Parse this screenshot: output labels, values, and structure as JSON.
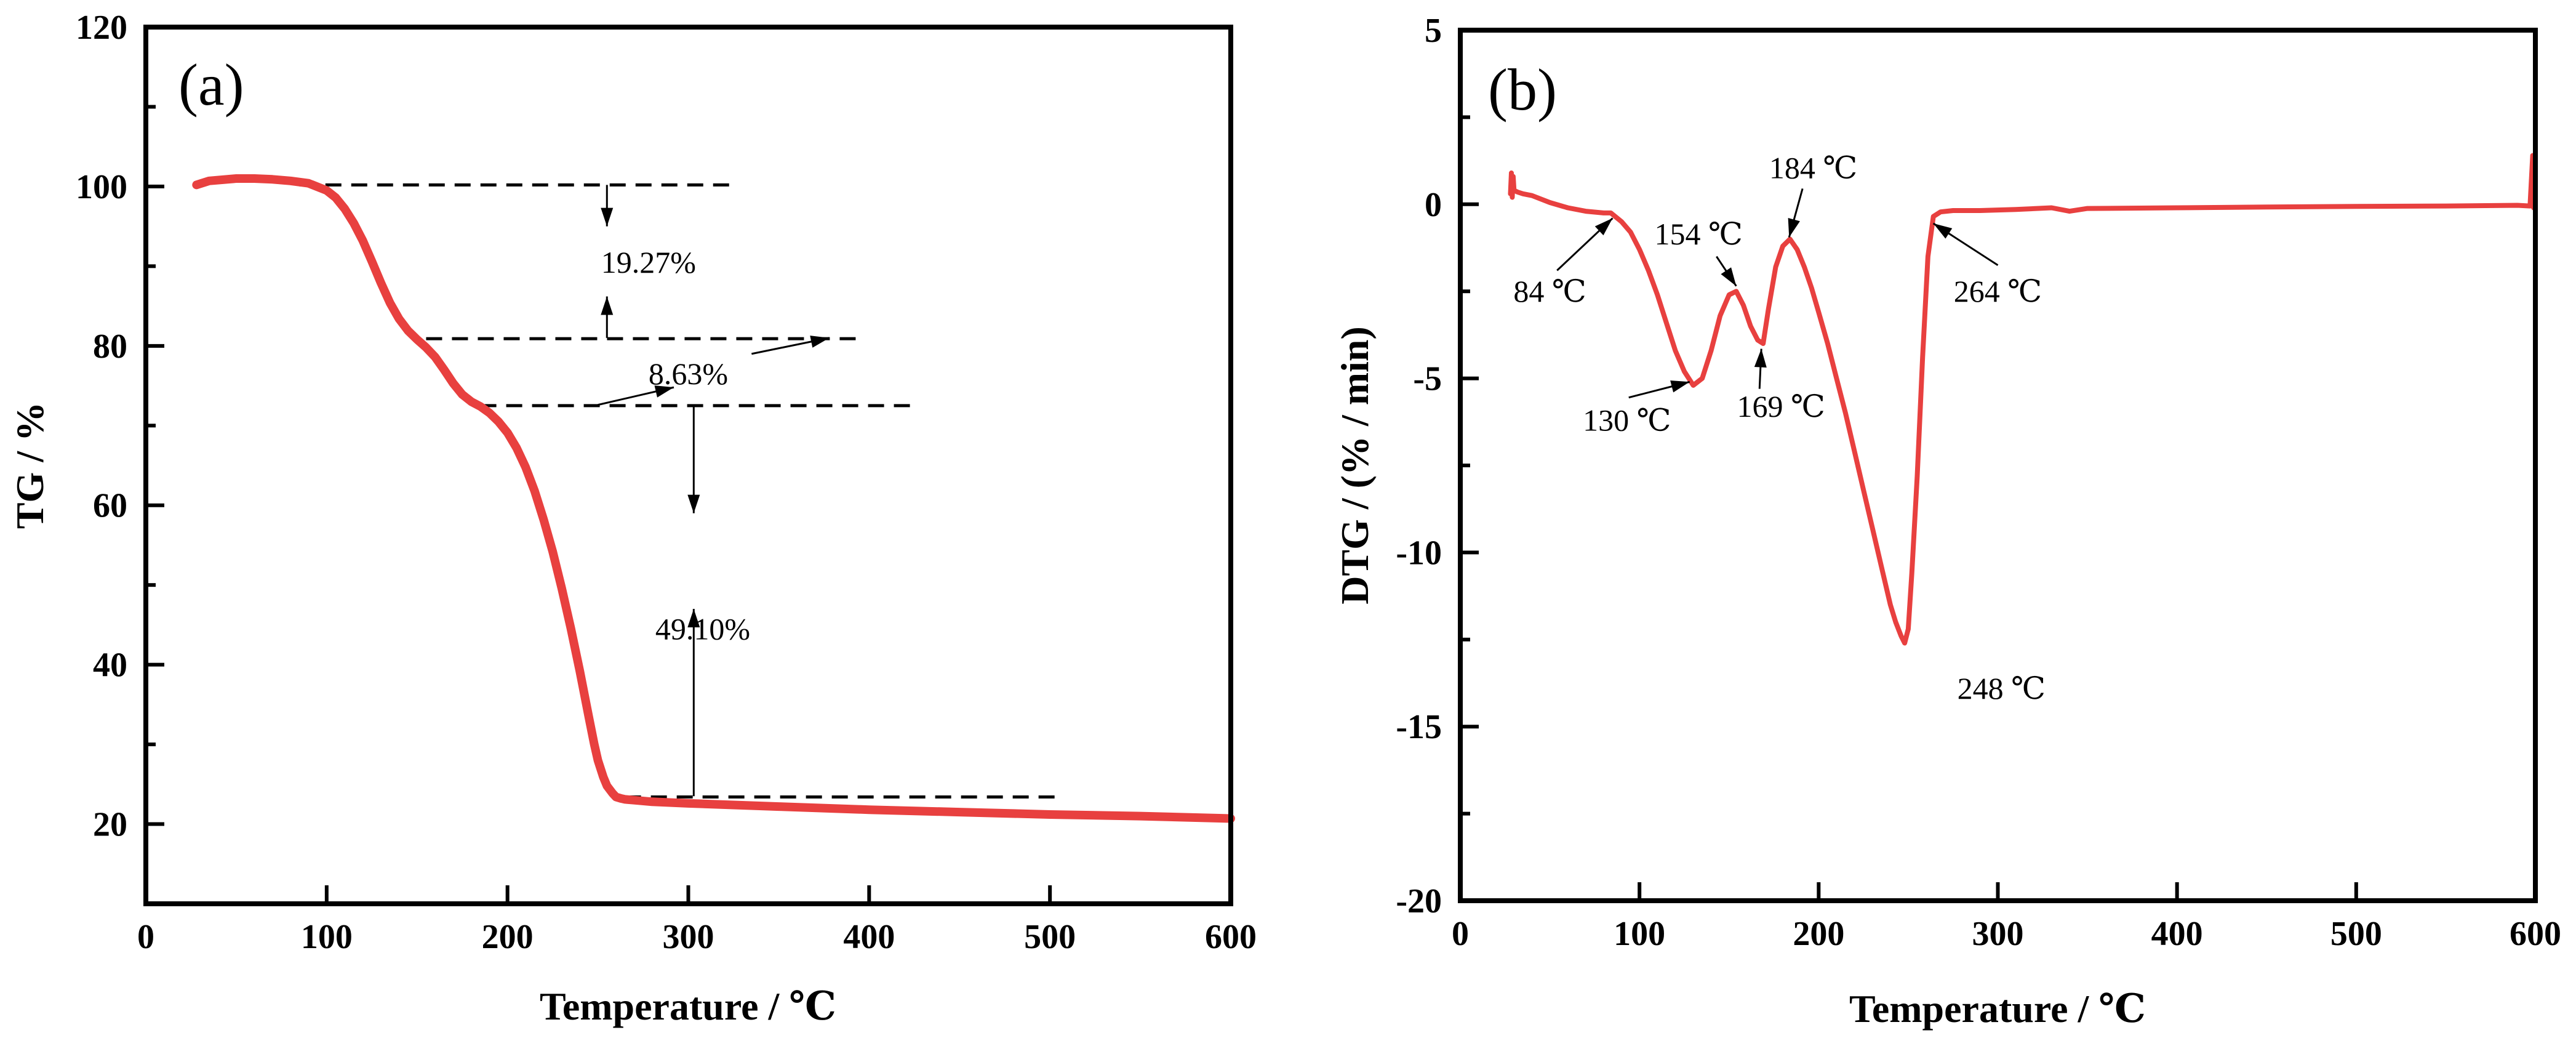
{
  "chart_data": [
    {
      "type": "line",
      "panel_label": "(a)",
      "xlabel": "Temperature / ℃",
      "ylabel": "TG / %",
      "xlim": [
        0,
        600
      ],
      "ylim": [
        10,
        120
      ],
      "xticks": [
        0,
        100,
        200,
        300,
        400,
        500,
        600
      ],
      "yticks": [
        20,
        40,
        60,
        80,
        100,
        120
      ],
      "minor_yticks": [
        30,
        50,
        70,
        90,
        110
      ],
      "line_color": "#e8403f",
      "series": [
        {
          "name": "TG",
          "x": [
            28,
            35,
            50,
            60,
            70,
            80,
            90,
            100,
            105,
            110,
            115,
            120,
            125,
            130,
            135,
            140,
            145,
            150,
            155,
            160,
            165,
            170,
            175,
            180,
            185,
            190,
            195,
            200,
            205,
            210,
            215,
            220,
            225,
            230,
            235,
            240,
            245,
            248,
            250,
            253,
            255,
            258,
            260,
            263,
            265,
            270,
            280,
            300,
            350,
            400,
            450,
            500,
            550,
            600
          ],
          "y": [
            100.2,
            100.7,
            101.0,
            101.0,
            100.9,
            100.7,
            100.4,
            99.5,
            98.6,
            97.2,
            95.4,
            93.2,
            90.6,
            87.9,
            85.4,
            83.4,
            81.9,
            80.8,
            79.8,
            78.6,
            77.0,
            75.3,
            73.9,
            73.0,
            72.4,
            71.6,
            70.5,
            69.1,
            67.2,
            64.8,
            61.8,
            58.2,
            54.2,
            49.6,
            44.6,
            39.2,
            33.4,
            30.0,
            28.0,
            25.9,
            24.8,
            23.9,
            23.4,
            23.2,
            23.1,
            23.0,
            22.8,
            22.6,
            22.2,
            21.8,
            21.5,
            21.2,
            21.0,
            20.7
          ]
        }
      ],
      "dashed_lines": [
        {
          "x": [
            85,
            325
          ],
          "y": 100.2
        },
        {
          "x": [
            155,
            395
          ],
          "y": 80.9
        },
        {
          "x": [
            185,
            425
          ],
          "y": 72.5
        },
        {
          "x": [
            265,
            505
          ],
          "y": 23.4
        }
      ],
      "annotations": [
        {
          "text": "19.27%",
          "x": 278,
          "y": 90.5
        },
        {
          "text": "8.63%",
          "x": 300,
          "y": 76.5
        },
        {
          "text": "49.10%",
          "x": 308,
          "y": 44.5
        }
      ],
      "arrows": [
        {
          "from": [
            255,
            100.2
          ],
          "to": [
            255,
            95.0
          ]
        },
        {
          "from": [
            255,
            81.0
          ],
          "to": [
            255,
            86.2
          ]
        },
        {
          "from": [
            335,
            79.0
          ],
          "to": [
            378,
            81.0
          ]
        },
        {
          "from": [
            250,
            72.6
          ],
          "to": [
            292,
            74.8
          ]
        },
        {
          "from": [
            303,
            72.5
          ],
          "to": [
            303,
            59.0
          ]
        },
        {
          "from": [
            303,
            23.5
          ],
          "to": [
            303,
            47.0
          ]
        }
      ]
    },
    {
      "type": "line",
      "panel_label": "(b)",
      "xlabel": "Temperature / ℃",
      "ylabel": "DTG / (% / min)",
      "xlim": [
        0,
        600
      ],
      "ylim": [
        -20,
        5
      ],
      "xticks": [
        0,
        100,
        200,
        300,
        400,
        500,
        600
      ],
      "yticks": [
        -20,
        -15,
        -10,
        -5,
        0,
        5
      ],
      "minor_yticks": [
        -17.5,
        -12.5,
        -7.5,
        -2.5,
        2.5
      ],
      "line_color": "#e8403f",
      "series": [
        {
          "name": "DTG",
          "x": [
            28,
            28.5,
            29,
            29.5,
            30,
            32,
            35,
            40,
            50,
            60,
            70,
            80,
            84,
            90,
            95,
            100,
            105,
            110,
            115,
            120,
            125,
            130,
            135,
            140,
            145,
            150,
            154,
            158,
            162,
            166,
            169,
            172,
            176,
            180,
            184,
            188,
            192,
            196,
            200,
            205,
            210,
            215,
            220,
            225,
            230,
            235,
            240,
            243,
            246,
            248,
            250,
            252,
            255,
            258,
            261,
            264,
            268,
            275,
            290,
            310,
            330,
            340,
            350,
            400,
            450,
            500,
            550,
            590,
            597,
            598.5,
            599,
            599.5,
            600
          ],
          "y": [
            0.3,
            0.9,
            0.2,
            0.8,
            0.4,
            0.35,
            0.3,
            0.25,
            0.05,
            -0.1,
            -0.2,
            -0.25,
            -0.25,
            -0.5,
            -0.8,
            -1.3,
            -1.9,
            -2.6,
            -3.4,
            -4.2,
            -4.8,
            -5.2,
            -5.0,
            -4.2,
            -3.2,
            -2.6,
            -2.5,
            -2.9,
            -3.5,
            -3.9,
            -4.0,
            -3.0,
            -1.8,
            -1.2,
            -1.0,
            -1.3,
            -1.8,
            -2.4,
            -3.1,
            -4.0,
            -5.0,
            -6.0,
            -7.1,
            -8.2,
            -9.3,
            -10.4,
            -11.5,
            -12.0,
            -12.4,
            -12.6,
            -12.2,
            -10.6,
            -7.8,
            -4.4,
            -1.5,
            -0.35,
            -0.22,
            -0.18,
            -0.18,
            -0.15,
            -0.1,
            -0.2,
            -0.12,
            -0.1,
            -0.08,
            -0.06,
            -0.05,
            -0.03,
            -0.05,
            1.4,
            -0.1,
            0.6,
            0.0
          ]
        }
      ],
      "annotations": [
        {
          "text": "84 ℃",
          "x": 50,
          "y": -2.5
        },
        {
          "text": "130 ℃",
          "x": 93,
          "y": -6.2
        },
        {
          "text": "154 ℃",
          "x": 133,
          "y": -0.85
        },
        {
          "text": "169 ℃",
          "x": 179,
          "y": -5.8
        },
        {
          "text": "184 ℃",
          "x": 197,
          "y": 1.05
        },
        {
          "text": "248 ℃",
          "x": 302,
          "y": -13.9
        },
        {
          "text": "264 ℃",
          "x": 300,
          "y": -2.5
        }
      ],
      "arrows": [
        {
          "from": [
            54,
            -1.9
          ],
          "to": [
            85,
            -0.4
          ]
        },
        {
          "from": [
            94,
            -5.55
          ],
          "to": [
            128,
            -5.1
          ]
        },
        {
          "from": [
            143,
            -1.5
          ],
          "to": [
            154,
            -2.35
          ]
        },
        {
          "from": [
            167,
            -5.3
          ],
          "to": [
            168,
            -4.15
          ]
        },
        {
          "from": [
            191,
            0.45
          ],
          "to": [
            183.5,
            -0.95
          ]
        },
        {
          "from": [
            300,
            -1.75
          ],
          "to": [
            264,
            -0.55
          ]
        }
      ]
    }
  ]
}
